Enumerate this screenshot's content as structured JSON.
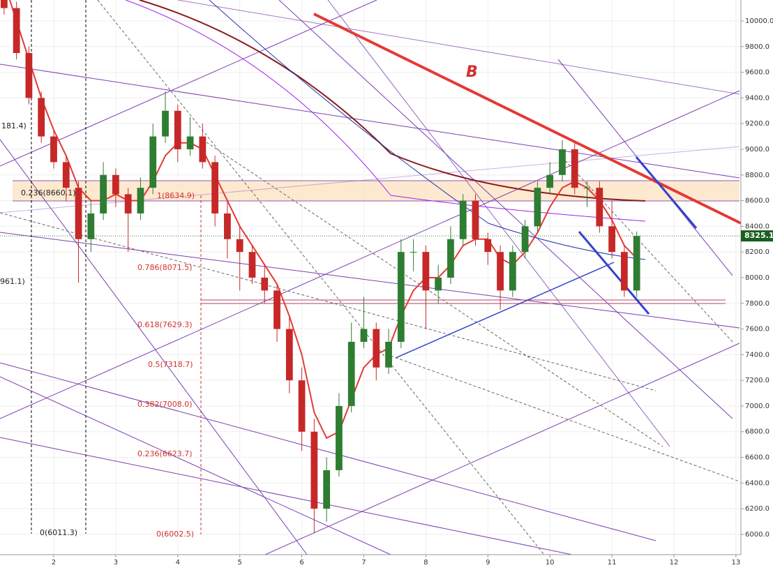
{
  "chart_data": {
    "type": "candlestick",
    "x": [
      1.2,
      1.4,
      1.6,
      1.8,
      2.0,
      2.2,
      2.4,
      2.6,
      2.8,
      3.0,
      3.2,
      3.4,
      3.6,
      3.8,
      4.0,
      4.2,
      4.4,
      4.6,
      4.8,
      5.0,
      5.2,
      5.4,
      5.6,
      5.8,
      6.0,
      6.2,
      6.4,
      6.6,
      6.8,
      7.0,
      7.2,
      7.4,
      7.6,
      7.8,
      8.0,
      8.2,
      8.4,
      8.6,
      8.8,
      9.0,
      9.2,
      9.4,
      9.6,
      9.8,
      10.0,
      10.2,
      10.4,
      10.6,
      10.8,
      11.0,
      11.2,
      11.4
    ],
    "open": [
      10200,
      10100,
      9750,
      9400,
      9100,
      8900,
      8700,
      8300,
      8500,
      8800,
      8650,
      8500,
      8700,
      9100,
      9300,
      9000,
      9100,
      8900,
      8500,
      8300,
      8200,
      8000,
      7900,
      7600,
      7200,
      6800,
      6200,
      6500,
      7000,
      7500,
      7600,
      7300,
      7500,
      8200,
      8200,
      7900,
      8000,
      8300,
      8600,
      8300,
      8200,
      7900,
      8200,
      8400,
      8700,
      8800,
      9000,
      8700,
      8700,
      8400,
      8200,
      7900
    ],
    "high": [
      10260,
      10150,
      9800,
      9450,
      9150,
      8950,
      8750,
      8600,
      8900,
      8850,
      8700,
      8780,
      9200,
      9450,
      9350,
      9250,
      9200,
      8950,
      8600,
      8400,
      8250,
      8100,
      7950,
      7700,
      7300,
      6900,
      6600,
      7100,
      7650,
      7850,
      7650,
      7600,
      8300,
      8300,
      8250,
      8100,
      8400,
      8650,
      8650,
      8350,
      8250,
      8250,
      8450,
      8750,
      8900,
      9070,
      9050,
      8750,
      8750,
      8600,
      8250,
      8360
    ],
    "low": [
      10050,
      9700,
      9350,
      9050,
      8850,
      8600,
      7960,
      8200,
      8450,
      8550,
      8200,
      8450,
      8650,
      9050,
      8900,
      8950,
      8850,
      8400,
      8150,
      7900,
      7950,
      7800,
      7500,
      7100,
      6650,
      6010,
      6100,
      6450,
      6950,
      7450,
      7200,
      7250,
      7450,
      8050,
      7600,
      7800,
      7950,
      8250,
      8250,
      8100,
      7750,
      7850,
      8150,
      8350,
      8650,
      8750,
      8650,
      8550,
      8350,
      8150,
      7850,
      7850
    ],
    "close": [
      10100,
      9750,
      9400,
      9100,
      8900,
      8700,
      8300,
      8500,
      8800,
      8650,
      8500,
      8700,
      9100,
      9300,
      9000,
      9100,
      8900,
      8500,
      8300,
      8200,
      8000,
      7900,
      7600,
      7200,
      6800,
      6200,
      6500,
      7000,
      7500,
      7600,
      7300,
      7500,
      8200,
      8200,
      7900,
      8000,
      8300,
      8600,
      8300,
      8200,
      7900,
      8200,
      8400,
      8700,
      8800,
      9000,
      8700,
      8700,
      8400,
      8200,
      7900,
      8325
    ],
    "up_color": "#2e7d32",
    "down_color": "#c62828",
    "series": [
      {
        "color": "#e53935",
        "values": [
          10300,
          10000,
          9700,
          9400,
          9150,
          8950,
          8700,
          8600,
          8600,
          8650,
          8600,
          8600,
          8750,
          8950,
          9050,
          9050,
          9000,
          8800,
          8600,
          8400,
          8250,
          8100,
          7950,
          7700,
          7400,
          6950,
          6750,
          6800,
          7050,
          7300,
          7400,
          7450,
          7700,
          7900,
          8000,
          8000,
          8100,
          8250,
          8300,
          8300,
          8150,
          8100,
          8200,
          8350,
          8550,
          8700,
          8750,
          8700,
          8600,
          8450,
          8250,
          8150
        ]
      }
    ],
    "last_price": 8325.1,
    "xlim": [
      1.134,
      13.08
    ],
    "ylim": [
      5842,
      10163
    ],
    "xticks": [
      2,
      3,
      4,
      5,
      6,
      7,
      8,
      9,
      10,
      11,
      12,
      13
    ],
    "yticks": [
      {
        "value": 6000,
        "label": "6000.0"
      },
      {
        "value": 6200,
        "label": "6200.0"
      },
      {
        "value": 6400,
        "label": "6400.0"
      },
      {
        "value": 6600,
        "label": "6600.0"
      },
      {
        "value": 6800,
        "label": "6800.0"
      },
      {
        "value": 7000,
        "label": "7000.0"
      },
      {
        "value": 7200,
        "label": "7200.0"
      },
      {
        "value": 7400,
        "label": "7400.0"
      },
      {
        "value": 7600,
        "label": "7600.0"
      },
      {
        "value": 7800,
        "label": "7800.0"
      },
      {
        "value": 8000,
        "label": "8000.0"
      },
      {
        "value": 8200,
        "label": "8200.0"
      },
      {
        "value": 8400,
        "label": "8400.0"
      },
      {
        "value": 8600,
        "label": "8600.0"
      },
      {
        "value": 8800,
        "label": "8800.0"
      },
      {
        "value": 9000,
        "label": "9000.0"
      },
      {
        "value": 9200,
        "label": "9200.0"
      },
      {
        "value": 9400,
        "label": "9400.0"
      },
      {
        "value": 9600,
        "label": "9600.0"
      },
      {
        "value": 9800,
        "label": "9800.0"
      },
      {
        "value": 10000,
        "label": "10000.0"
      }
    ],
    "grid": true,
    "annotations": [
      "0.236(8660.1)",
      "1(8634.9)",
      "0.786(8071.5)",
      "0.618(7629.3)",
      "0.5(7318.7)",
      "0.382(7008.0)",
      "0.236(6623.7)",
      "0(6002.5)",
      "0(6011.3)",
      "181.4)",
      "961.1)",
      "B"
    ]
  }
}
